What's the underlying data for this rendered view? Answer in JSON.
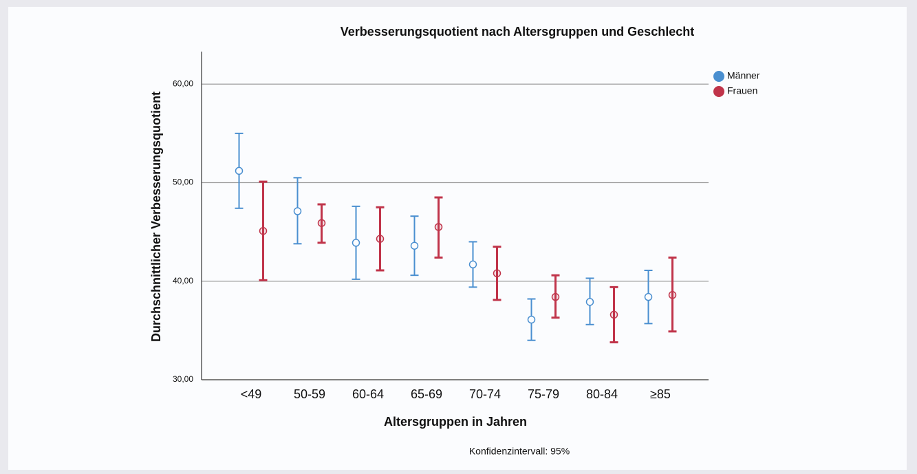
{
  "chart_data": {
    "type": "errorbar",
    "title": "Verbesserungsquotient nach Altersgruppen und Geschlecht",
    "x_label": "Altersgruppen in Jahren",
    "y_label": "Durchschnittlicher Verbesserungsquotient",
    "note": "Konfidenzintervall: 95%",
    "categories": [
      "<49",
      "50-59",
      "60-64",
      "65-69",
      "70-74",
      "75-79",
      "80-84",
      "≥85"
    ],
    "series": [
      {
        "name": "Männer",
        "color": "#4a8fd0",
        "values": [
          51.2,
          47.1,
          43.9,
          43.6,
          41.7,
          36.1,
          37.9,
          38.4
        ],
        "lower": [
          47.4,
          43.8,
          40.2,
          40.6,
          39.4,
          34.0,
          35.6,
          35.7
        ],
        "upper": [
          55.0,
          50.5,
          47.6,
          46.6,
          44.0,
          38.2,
          40.3,
          41.1
        ]
      },
      {
        "name": "Frauen",
        "color": "#c0344a",
        "values": [
          45.1,
          45.9,
          44.3,
          45.5,
          40.8,
          38.4,
          36.6,
          38.6
        ],
        "lower": [
          40.1,
          43.9,
          41.1,
          42.4,
          38.1,
          36.3,
          33.8,
          34.9
        ],
        "upper": [
          50.1,
          47.8,
          47.5,
          48.5,
          43.5,
          40.6,
          39.4,
          42.4
        ]
      }
    ],
    "ylim": [
      30,
      63.3
    ],
    "yticks": [
      {
        "value": 30,
        "label": "30,00"
      },
      {
        "value": 40,
        "label": "40,00"
      },
      {
        "value": 50,
        "label": "50,00"
      },
      {
        "value": 60,
        "label": "60,00"
      }
    ],
    "grid": true,
    "legend": "top-right"
  }
}
